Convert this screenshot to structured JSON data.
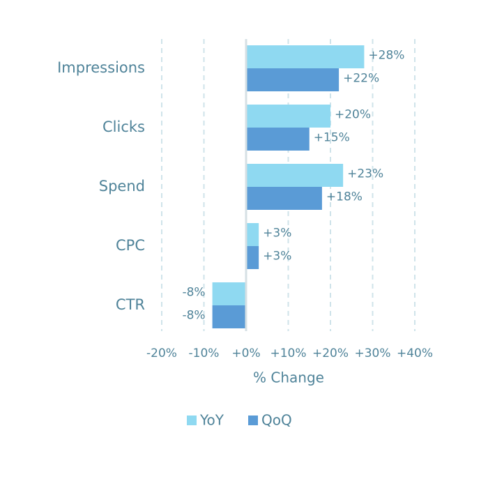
{
  "chart_data": {
    "type": "bar",
    "orientation": "horizontal",
    "categories": [
      "Impressions",
      "Clicks",
      "Spend",
      "CPC",
      "CTR"
    ],
    "series": [
      {
        "name": "YoY",
        "color": "#8fd9f1",
        "values": [
          28,
          20,
          23,
          3,
          -8
        ],
        "value_labels": [
          "+28%",
          "+20%",
          "+23%",
          "+3%",
          "-8%"
        ]
      },
      {
        "name": "QoQ",
        "color": "#5a9bd6",
        "values": [
          22,
          15,
          18,
          3,
          -8
        ],
        "value_labels": [
          "+22%",
          "+15%",
          "+18%",
          "+3%",
          "-8%"
        ]
      }
    ],
    "xlabel": "% Change",
    "xlim": [
      -20,
      40
    ],
    "xticks": [
      {
        "value": -20,
        "label": "-20%"
      },
      {
        "value": -10,
        "label": "-10%"
      },
      {
        "value": 0,
        "label": "+0%"
      },
      {
        "value": 10,
        "label": "+10%"
      },
      {
        "value": 20,
        "label": "+20%"
      },
      {
        "value": 30,
        "label": "+30%"
      },
      {
        "value": 40,
        "label": "+40%"
      }
    ],
    "grid": true
  }
}
